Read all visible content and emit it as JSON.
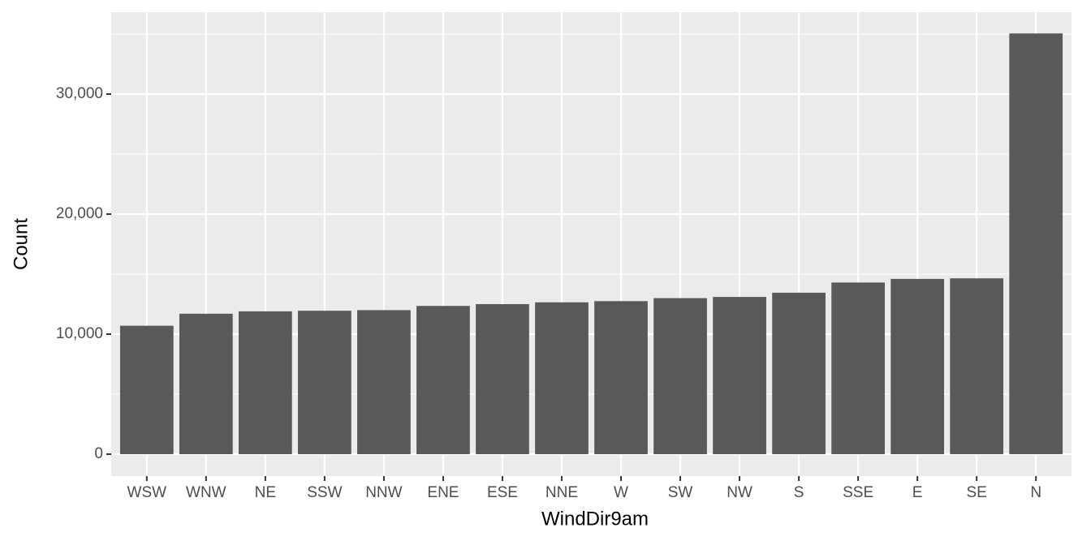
{
  "chart_data": {
    "type": "bar",
    "x_label": "WindDir9am",
    "y_label": "Count",
    "categories": [
      "WSW",
      "WNW",
      "NE",
      "SSW",
      "NNW",
      "ENE",
      "ESE",
      "NNE",
      "W",
      "SW",
      "NW",
      "S",
      "SSE",
      "E",
      "SE",
      "N"
    ],
    "values": [
      10700,
      11700,
      11900,
      11950,
      12000,
      12350,
      12500,
      12650,
      12750,
      13000,
      13100,
      13450,
      14300,
      14600,
      14650,
      35050
    ],
    "color": "#595959",
    "ylim": [
      -1824,
      36824
    ],
    "yticks": [
      0,
      {
        "value": 10000,
        "label": "10,000"
      },
      {
        "value": 20000,
        "label": "20,000"
      },
      {
        "value": 30000,
        "label": "30,000"
      }
    ],
    "y_minor_grid": [
      5000,
      15000,
      25000,
      35000
    ],
    "grid": true
  }
}
